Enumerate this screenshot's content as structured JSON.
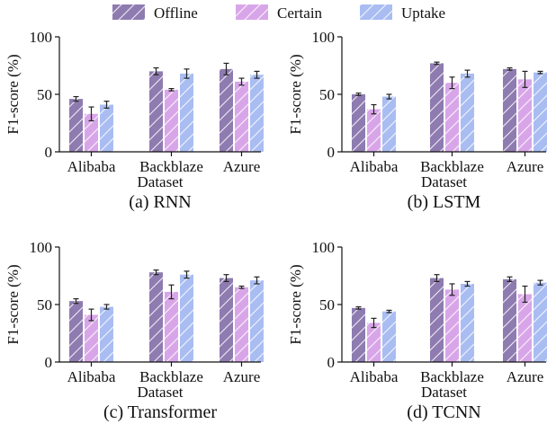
{
  "legend": {
    "items": [
      {
        "label": "Offline",
        "color": "#8e7bb0"
      },
      {
        "label": "Certain",
        "color": "#d8a6e8"
      },
      {
        "label": "Uptake",
        "color": "#a9bdf2"
      }
    ]
  },
  "chart_data": [
    {
      "type": "bar",
      "title": "(a) RNN",
      "xlabel": "Dataset",
      "ylabel": "F1-score (%)",
      "ylim": [
        0,
        100
      ],
      "yticks": [
        0,
        50,
        100
      ],
      "categories": [
        "Alibaba",
        "Backblaze",
        "Azure"
      ],
      "series": [
        {
          "name": "Offline",
          "values": [
            46,
            70,
            72
          ],
          "errors": [
            2,
            3,
            5
          ]
        },
        {
          "name": "Certain",
          "values": [
            33,
            54,
            61
          ],
          "errors": [
            6,
            1,
            3
          ]
        },
        {
          "name": "Uptake",
          "values": [
            41,
            68,
            67
          ],
          "errors": [
            3,
            4,
            3
          ]
        }
      ]
    },
    {
      "type": "bar",
      "title": "(b) LSTM",
      "xlabel": "Dataset",
      "ylabel": "F1-score (%)",
      "ylim": [
        0,
        100
      ],
      "yticks": [
        0,
        50,
        100
      ],
      "categories": [
        "Alibaba",
        "Backblaze",
        "Azure"
      ],
      "series": [
        {
          "name": "Offline",
          "values": [
            50,
            77,
            72
          ],
          "errors": [
            1,
            1,
            1
          ]
        },
        {
          "name": "Certain",
          "values": [
            37,
            60,
            63
          ],
          "errors": [
            4,
            5,
            7
          ]
        },
        {
          "name": "Uptake",
          "values": [
            48,
            68,
            69
          ],
          "errors": [
            2,
            3,
            1
          ]
        }
      ]
    },
    {
      "type": "bar",
      "title": "(c) Transformer",
      "xlabel": "Dataset",
      "ylabel": "F1-score (%)",
      "ylim": [
        0,
        100
      ],
      "yticks": [
        0,
        50,
        100
      ],
      "categories": [
        "Alibaba",
        "Backblaze",
        "Azure"
      ],
      "series": [
        {
          "name": "Offline",
          "values": [
            53,
            78,
            73
          ],
          "errors": [
            2,
            2,
            3
          ]
        },
        {
          "name": "Certain",
          "values": [
            41,
            61,
            65
          ],
          "errors": [
            5,
            6,
            1
          ]
        },
        {
          "name": "Uptake",
          "values": [
            48,
            76,
            71
          ],
          "errors": [
            2,
            3,
            3
          ]
        }
      ]
    },
    {
      "type": "bar",
      "title": "(d) TCNN",
      "xlabel": "Dataset",
      "ylabel": "F1-score (%)",
      "ylim": [
        0,
        100
      ],
      "yticks": [
        0,
        50,
        100
      ],
      "categories": [
        "Alibaba",
        "Backblaze",
        "Azure"
      ],
      "series": [
        {
          "name": "Offline",
          "values": [
            47,
            73,
            72
          ],
          "errors": [
            1,
            3,
            2
          ]
        },
        {
          "name": "Certain",
          "values": [
            34,
            63,
            59
          ],
          "errors": [
            4,
            5,
            7
          ]
        },
        {
          "name": "Uptake",
          "values": [
            44,
            68,
            69
          ],
          "errors": [
            1,
            2,
            2
          ]
        }
      ]
    }
  ]
}
